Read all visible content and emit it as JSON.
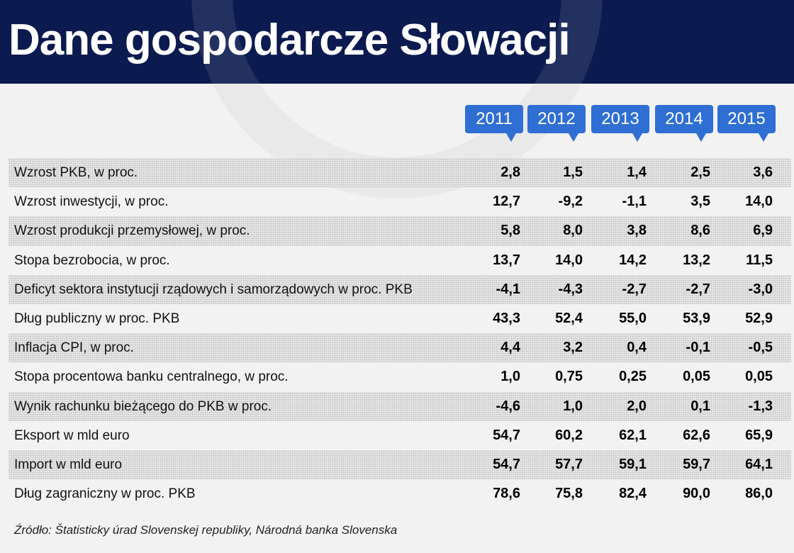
{
  "header": {
    "title": "Dane gospodarcze Słowacji"
  },
  "source": "Źródło: Štatisticky úrad Slovenskej republiky, Národná banka Slovenska",
  "chart_data": {
    "type": "table",
    "title": "Dane gospodarcze Słowacji",
    "columns": [
      "2011",
      "2012",
      "2013",
      "2014",
      "2015"
    ],
    "rows": [
      {
        "label": "Wzrost PKB, w proc.",
        "values": [
          "2,8",
          "1,5",
          "1,4",
          "2,5",
          "3,6"
        ]
      },
      {
        "label": "Wzrost inwestycji, w proc.",
        "values": [
          "12,7",
          "-9,2",
          "-1,1",
          "3,5",
          "14,0"
        ]
      },
      {
        "label": "Wzrost produkcji przemysłowej, w proc.",
        "values": [
          "5,8",
          "8,0",
          "3,8",
          "8,6",
          "6,9"
        ]
      },
      {
        "label": "Stopa bezrobocia, w proc.",
        "values": [
          "13,7",
          "14,0",
          "14,2",
          "13,2",
          "11,5"
        ]
      },
      {
        "label": "Deficyt sektora instytucji rządowych i samorządowych w proc. PKB",
        "values": [
          "-4,1",
          "-4,3",
          "-2,7",
          "-2,7",
          "-3,0"
        ]
      },
      {
        "label": "Dług publiczny w proc. PKB",
        "values": [
          "43,3",
          "52,4",
          "55,0",
          "53,9",
          "52,9"
        ]
      },
      {
        "label": "Inflacja CPI, w proc.",
        "values": [
          "4,4",
          "3,2",
          "0,4",
          "-0,1",
          "-0,5"
        ]
      },
      {
        "label": "Stopa procentowa banku centralnego, w proc.",
        "values": [
          "1,0",
          "0,75",
          "0,25",
          "0,05",
          "0,05"
        ]
      },
      {
        "label": "Wynik rachunku bieżącego do PKB w proc.",
        "values": [
          "-4,6",
          "1,0",
          "2,0",
          "0,1",
          "-1,3"
        ]
      },
      {
        "label": "Eksport w mld euro",
        "values": [
          "54,7",
          "60,2",
          "62,1",
          "62,6",
          "65,9"
        ]
      },
      {
        "label": "Import w mld euro",
        "values": [
          "54,7",
          "57,7",
          "59,1",
          "59,7",
          "64,1"
        ]
      },
      {
        "label": "Dług zagraniczny w proc. PKB",
        "values": [
          "78,6",
          "75,8",
          "82,4",
          "90,0",
          "86,0"
        ]
      }
    ]
  }
}
